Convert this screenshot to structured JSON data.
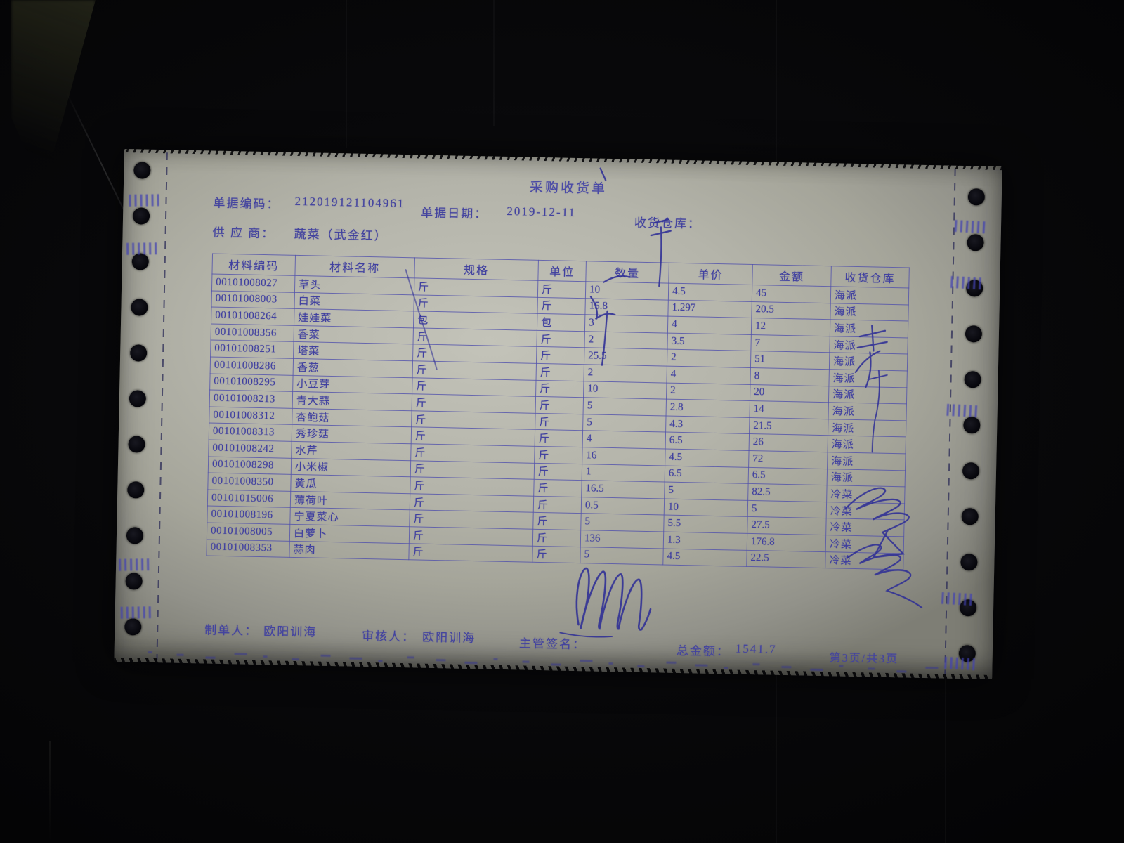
{
  "document": {
    "title": "采购收货单",
    "doc_code_label": "单据编码：",
    "doc_code": "212019121104961",
    "date_label": "单据日期：",
    "date": "2019-12-11",
    "warehouse_label": "收货仓库：",
    "supplier_label": "供 应 商：",
    "supplier": "蔬菜（武金红）"
  },
  "table": {
    "columns": [
      "材料编码",
      "材料名称",
      "规格",
      "单位",
      "数量",
      "单价",
      "金额",
      "收货仓库"
    ],
    "rows": [
      {
        "code": "00101008027",
        "name": "草头",
        "spec": "斤",
        "unit": "斤",
        "qty": "10",
        "price": "4.5",
        "amount": "45",
        "warehouse": "海派"
      },
      {
        "code": "00101008003",
        "name": "白菜",
        "spec": "斤",
        "unit": "斤",
        "qty": "15.8",
        "price": "1.297",
        "amount": "20.5",
        "warehouse": "海派"
      },
      {
        "code": "00101008264",
        "name": "娃娃菜",
        "spec": "包",
        "unit": "包",
        "qty": "3",
        "price": "4",
        "amount": "12",
        "warehouse": "海派"
      },
      {
        "code": "00101008356",
        "name": "香菜",
        "spec": "斤",
        "unit": "斤",
        "qty": "2",
        "price": "3.5",
        "amount": "7",
        "warehouse": "海派"
      },
      {
        "code": "00101008251",
        "name": "塔菜",
        "spec": "斤",
        "unit": "斤",
        "qty": "25.5",
        "price": "2",
        "amount": "51",
        "warehouse": "海派"
      },
      {
        "code": "00101008286",
        "name": "香葱",
        "spec": "斤",
        "unit": "斤",
        "qty": "2",
        "price": "4",
        "amount": "8",
        "warehouse": "海派"
      },
      {
        "code": "00101008295",
        "name": "小豆芽",
        "spec": "斤",
        "unit": "斤",
        "qty": "10",
        "price": "2",
        "amount": "20",
        "warehouse": "海派"
      },
      {
        "code": "00101008213",
        "name": "青大蒜",
        "spec": "斤",
        "unit": "斤",
        "qty": "5",
        "price": "2.8",
        "amount": "14",
        "warehouse": "海派"
      },
      {
        "code": "00101008312",
        "name": "杏鲍菇",
        "spec": "斤",
        "unit": "斤",
        "qty": "5",
        "price": "4.3",
        "amount": "21.5",
        "warehouse": "海派"
      },
      {
        "code": "00101008313",
        "name": "秀珍菇",
        "spec": "斤",
        "unit": "斤",
        "qty": "4",
        "price": "6.5",
        "amount": "26",
        "warehouse": "海派"
      },
      {
        "code": "00101008242",
        "name": "水芹",
        "spec": "斤",
        "unit": "斤",
        "qty": "16",
        "price": "4.5",
        "amount": "72",
        "warehouse": "海派"
      },
      {
        "code": "00101008298",
        "name": "小米椒",
        "spec": "斤",
        "unit": "斤",
        "qty": "1",
        "price": "6.5",
        "amount": "6.5",
        "warehouse": "海派"
      },
      {
        "code": "00101008350",
        "name": "黄瓜",
        "spec": "斤",
        "unit": "斤",
        "qty": "16.5",
        "price": "5",
        "amount": "82.5",
        "warehouse": "冷菜"
      },
      {
        "code": "00101015006",
        "name": "薄荷叶",
        "spec": "斤",
        "unit": "斤",
        "qty": "0.5",
        "price": "10",
        "amount": "5",
        "warehouse": "冷菜"
      },
      {
        "code": "00101008196",
        "name": "宁夏菜心",
        "spec": "斤",
        "unit": "斤",
        "qty": "5",
        "price": "5.5",
        "amount": "27.5",
        "warehouse": "冷菜"
      },
      {
        "code": "00101008005",
        "name": "白萝卜",
        "spec": "斤",
        "unit": "斤",
        "qty": "136",
        "price": "1.3",
        "amount": "176.8",
        "warehouse": "冷菜"
      },
      {
        "code": "00101008353",
        "name": "蒜肉",
        "spec": "斤",
        "unit": "斤",
        "qty": "5",
        "price": "4.5",
        "amount": "22.5",
        "warehouse": "冷菜"
      }
    ]
  },
  "footer": {
    "maker_label": "制单人：",
    "maker": "欧阳训海",
    "auditor_label": "审核人：",
    "auditor": "欧阳训海",
    "sign_label": "主管签名：",
    "total_label": "总金额：",
    "total": "1541.7",
    "page": "第3页/共3页"
  },
  "colors": {
    "ink_print": "#4343a0",
    "ink_pen": "#2d2d96",
    "paper": "#b4b4aa",
    "background": "#08080a"
  }
}
